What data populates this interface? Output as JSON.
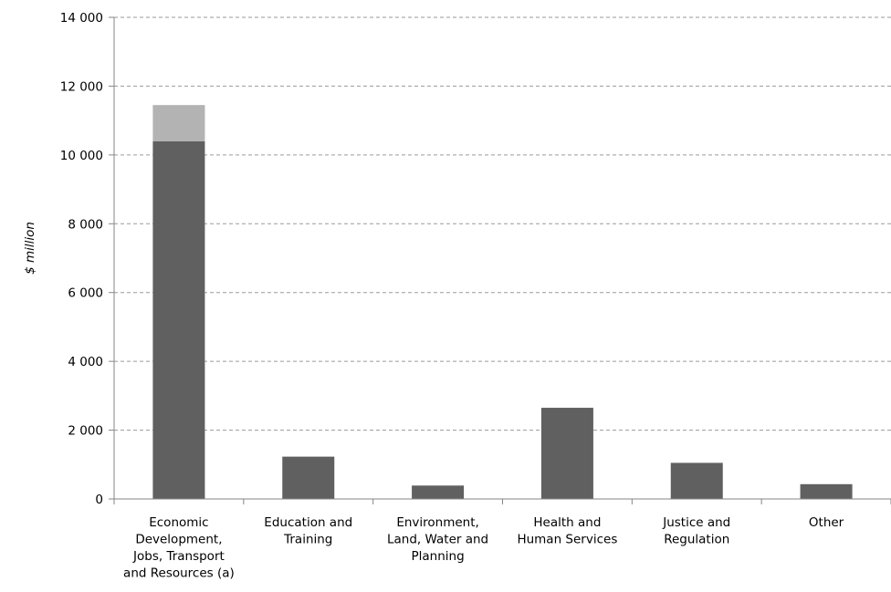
{
  "chart_data": {
    "type": "bar",
    "stacked": true,
    "title": "",
    "xlabel": "",
    "ylabel": "$ million",
    "ylim": [
      0,
      14000
    ],
    "yticks": [
      0,
      2000,
      4000,
      6000,
      8000,
      10000,
      12000,
      14000
    ],
    "ytick_labels": [
      "0",
      "2 000",
      "4 000",
      "6 000",
      "8 000",
      "10 000",
      "12 000",
      "14 000"
    ],
    "grid": true,
    "legend": "none",
    "categories": [
      [
        "Economic",
        "Development,",
        "Jobs, Transport",
        "and Resources (a)"
      ],
      [
        "Education and",
        "Training"
      ],
      [
        "Environment,",
        "Land, Water and",
        "Planning"
      ],
      [
        "Health and",
        "Human Services"
      ],
      [
        "Justice and",
        "Regulation"
      ],
      [
        "Other"
      ]
    ],
    "series": [
      {
        "color": "#606060",
        "values": [
          10400,
          1230,
          390,
          2650,
          1050,
          430
        ]
      },
      {
        "color": "#b3b3b3",
        "values": [
          1050,
          0,
          0,
          0,
          0,
          0
        ]
      }
    ]
  }
}
